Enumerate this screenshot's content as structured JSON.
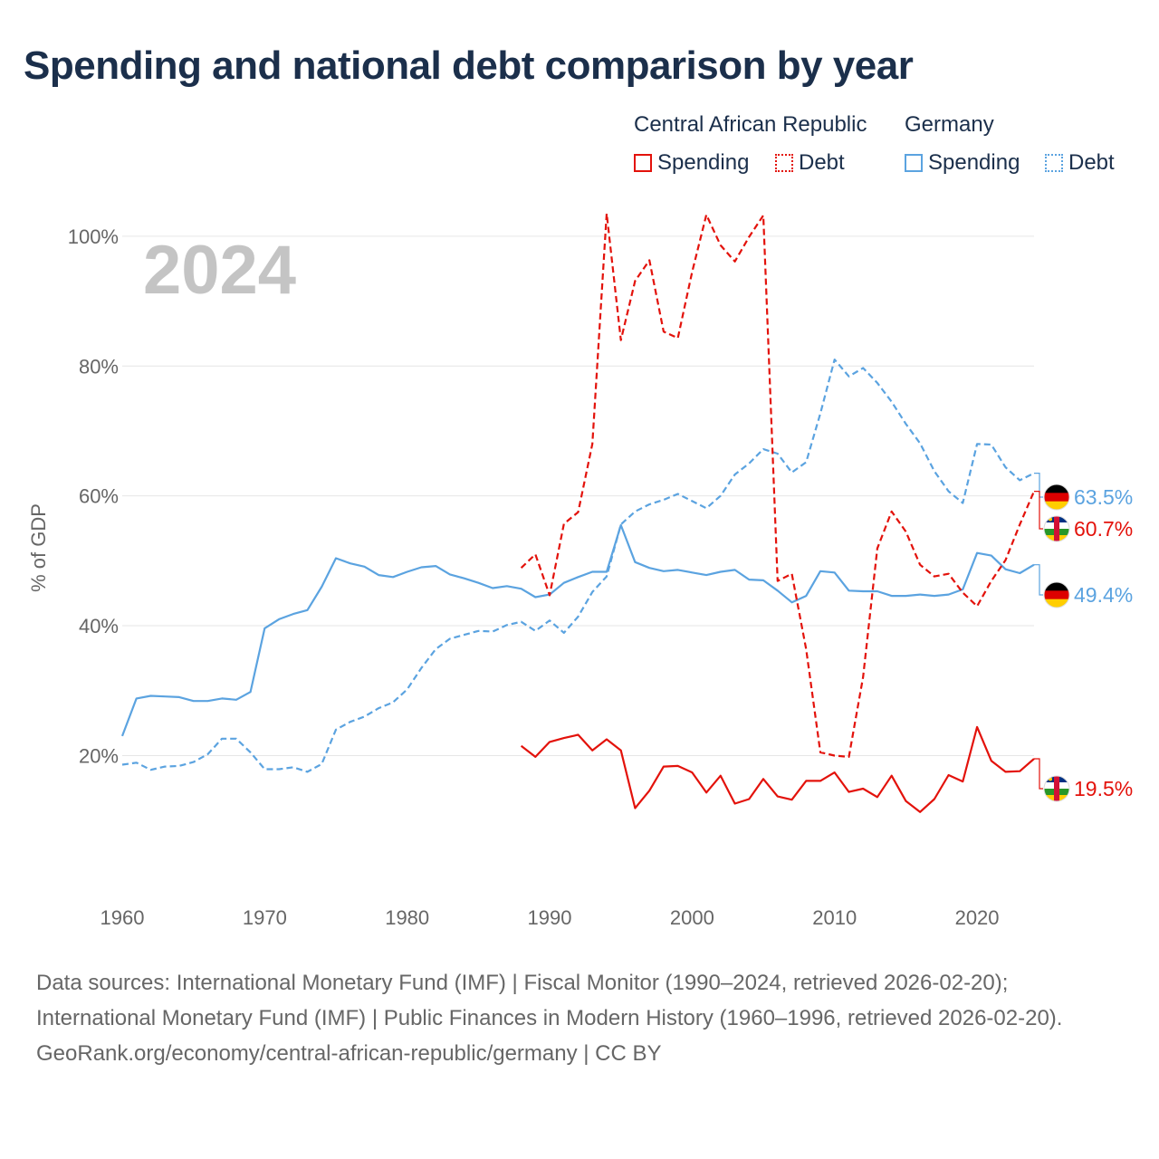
{
  "title": "Spending and national debt comparison by year",
  "legend": {
    "groups": [
      "Central African Republic",
      "Germany"
    ],
    "items": [
      "Spending",
      "Debt",
      "Spending",
      "Debt"
    ]
  },
  "colors": {
    "car": "#e3120b",
    "germany": "#5ba3e0",
    "grid": "#e6e6e6",
    "year": "#c4c4c4"
  },
  "source": {
    "line1": "Data sources: International Monetary Fund (IMF) | Fiscal Monitor (1990–2024, retrieved 2026-02-20); International Monetary Fund (IMF) | Public Finances in Modern History (1960–1996, retrieved 2026-02-20).",
    "line2": "GeoRank.org/economy/central-african-republic/germany | CC BY"
  },
  "chart_data": {
    "type": "line",
    "title": "Spending and national debt comparison by year",
    "year_label": "2024",
    "ylabel": "% of GDP",
    "xlim": [
      1960,
      2024
    ],
    "ylim": [
      5,
      105
    ],
    "x_ticks": [
      "1960",
      "1970",
      "1980",
      "1990",
      "2000",
      "2010",
      "2020"
    ],
    "y_ticks": [
      {
        "value": 20,
        "label": "20%"
      },
      {
        "value": 40,
        "label": "40%"
      },
      {
        "value": 60,
        "label": "60%"
      },
      {
        "value": 80,
        "label": "80%"
      },
      {
        "value": 100,
        "label": "100%"
      }
    ],
    "grid": true,
    "series": [
      {
        "name": "Germany Spending",
        "country": "germany",
        "style": "solid",
        "end_label": "49.4%",
        "flag": "germany",
        "x": [
          1960,
          1961,
          1962,
          1963,
          1964,
          1965,
          1966,
          1967,
          1968,
          1969,
          1970,
          1971,
          1972,
          1973,
          1974,
          1975,
          1976,
          1977,
          1978,
          1979,
          1980,
          1981,
          1982,
          1983,
          1984,
          1985,
          1986,
          1987,
          1988,
          1989,
          1990,
          1991,
          1992,
          1993,
          1994,
          1995,
          1996,
          1997,
          1998,
          1999,
          2000,
          2001,
          2002,
          2003,
          2004,
          2005,
          2006,
          2007,
          2008,
          2009,
          2010,
          2011,
          2012,
          2013,
          2014,
          2015,
          2016,
          2017,
          2018,
          2019,
          2020,
          2021,
          2022,
          2023,
          2024
        ],
        "y": [
          23,
          28.8,
          29.2,
          29.1,
          29,
          28.4,
          28.4,
          28.8,
          28.6,
          29.8,
          39.6,
          41,
          41.8,
          42.4,
          46,
          50.4,
          49.6,
          49.1,
          47.8,
          47.5,
          48.3,
          49,
          49.2,
          47.9,
          47.3,
          46.6,
          45.8,
          46.1,
          45.7,
          44.4,
          44.8,
          46.6,
          47.5,
          48.3,
          48.3,
          55.5,
          49.8,
          48.9,
          48.4,
          48.6,
          48.2,
          47.8,
          48.3,
          48.6,
          47.1,
          47,
          45.4,
          43.6,
          44.6,
          48.4,
          48.2,
          45.4,
          45.3,
          45.3,
          44.6,
          44.6,
          44.8,
          44.6,
          44.8,
          45.6,
          51.2,
          50.8,
          48.7,
          48.1,
          49.4
        ]
      },
      {
        "name": "Germany Debt",
        "country": "germany",
        "style": "dashed",
        "end_label": "63.5%",
        "flag": "germany",
        "x": [
          1960,
          1961,
          1962,
          1963,
          1964,
          1965,
          1966,
          1967,
          1968,
          1969,
          1970,
          1971,
          1972,
          1973,
          1974,
          1975,
          1976,
          1977,
          1978,
          1979,
          1980,
          1981,
          1982,
          1983,
          1984,
          1985,
          1986,
          1987,
          1988,
          1989,
          1990,
          1991,
          1992,
          1993,
          1994,
          1995,
          1996,
          1997,
          1998,
          1999,
          2000,
          2001,
          2002,
          2003,
          2004,
          2005,
          2006,
          2007,
          2008,
          2009,
          2010,
          2011,
          2012,
          2013,
          2014,
          2015,
          2016,
          2017,
          2018,
          2019,
          2020,
          2021,
          2022,
          2023,
          2024
        ],
        "y": [
          18.6,
          18.9,
          17.8,
          18.3,
          18.4,
          19,
          20.2,
          22.6,
          22.6,
          20.5,
          17.9,
          17.9,
          18.2,
          17.5,
          18.7,
          24,
          25.2,
          26,
          27.3,
          28.2,
          30.2,
          33.5,
          36.4,
          38,
          38.6,
          39.2,
          39.1,
          40.1,
          40.6,
          39.2,
          40.8,
          38.9,
          41.4,
          45.2,
          47.6,
          55.6,
          57.6,
          58.7,
          59.4,
          60.3,
          59.2,
          58.1,
          60,
          63.3,
          65,
          67.2,
          66.5,
          63.6,
          65.2,
          72.7,
          81,
          78.4,
          79.7,
          77.4,
          74.5,
          71.1,
          68.1,
          63.8,
          60.7,
          58.9,
          68,
          67.9,
          64.4,
          62.4,
          63.5
        ]
      },
      {
        "name": "Central African Republic Spending",
        "country": "car",
        "style": "solid",
        "end_label": "19.5%",
        "flag": "car",
        "x": [
          1988,
          1989,
          1990,
          1991,
          1992,
          1993,
          1994,
          1995,
          1996,
          1997,
          1998,
          1999,
          2000,
          2001,
          2002,
          2003,
          2004,
          2005,
          2006,
          2007,
          2008,
          2009,
          2010,
          2011,
          2012,
          2013,
          2014,
          2015,
          2016,
          2017,
          2018,
          2019,
          2020,
          2021,
          2022,
          2023,
          2024
        ],
        "y": [
          21.5,
          19.8,
          22.1,
          22.7,
          23.2,
          20.8,
          22.5,
          20.8,
          11.9,
          14.6,
          18.3,
          18.4,
          17.4,
          14.3,
          16.9,
          12.6,
          13.3,
          16.4,
          13.7,
          13.2,
          16.1,
          16.1,
          17.4,
          14.4,
          14.9,
          13.6,
          16.9,
          13,
          11.3,
          13.3,
          17,
          16,
          24.4,
          19.2,
          17.5,
          17.6,
          19.5
        ]
      },
      {
        "name": "Central African Republic Debt",
        "country": "car",
        "style": "dashed",
        "end_label": "60.7%",
        "flag": "car",
        "x": [
          1988,
          1989,
          1990,
          1991,
          1992,
          1993,
          1994,
          1995,
          1996,
          1997,
          1998,
          1999,
          2000,
          2001,
          2002,
          2003,
          2004,
          2005,
          2006,
          2007,
          2008,
          2009,
          2010,
          2011,
          2012,
          2013,
          2014,
          2015,
          2016,
          2017,
          2018,
          2019,
          2020,
          2021,
          2022,
          2023,
          2024
        ],
        "y": [
          48.9,
          51,
          44.7,
          55.7,
          57.5,
          68,
          103.5,
          84,
          93.1,
          96.3,
          85.3,
          84.3,
          94.5,
          103.3,
          98.6,
          96.1,
          99.9,
          103.2,
          46.9,
          48,
          36.4,
          20.5,
          20,
          19.8,
          32.1,
          51.9,
          57.6,
          54.5,
          49.4,
          47.6,
          48,
          45.1,
          43,
          46.9,
          50.1,
          55.6,
          60.7
        ]
      }
    ]
  }
}
